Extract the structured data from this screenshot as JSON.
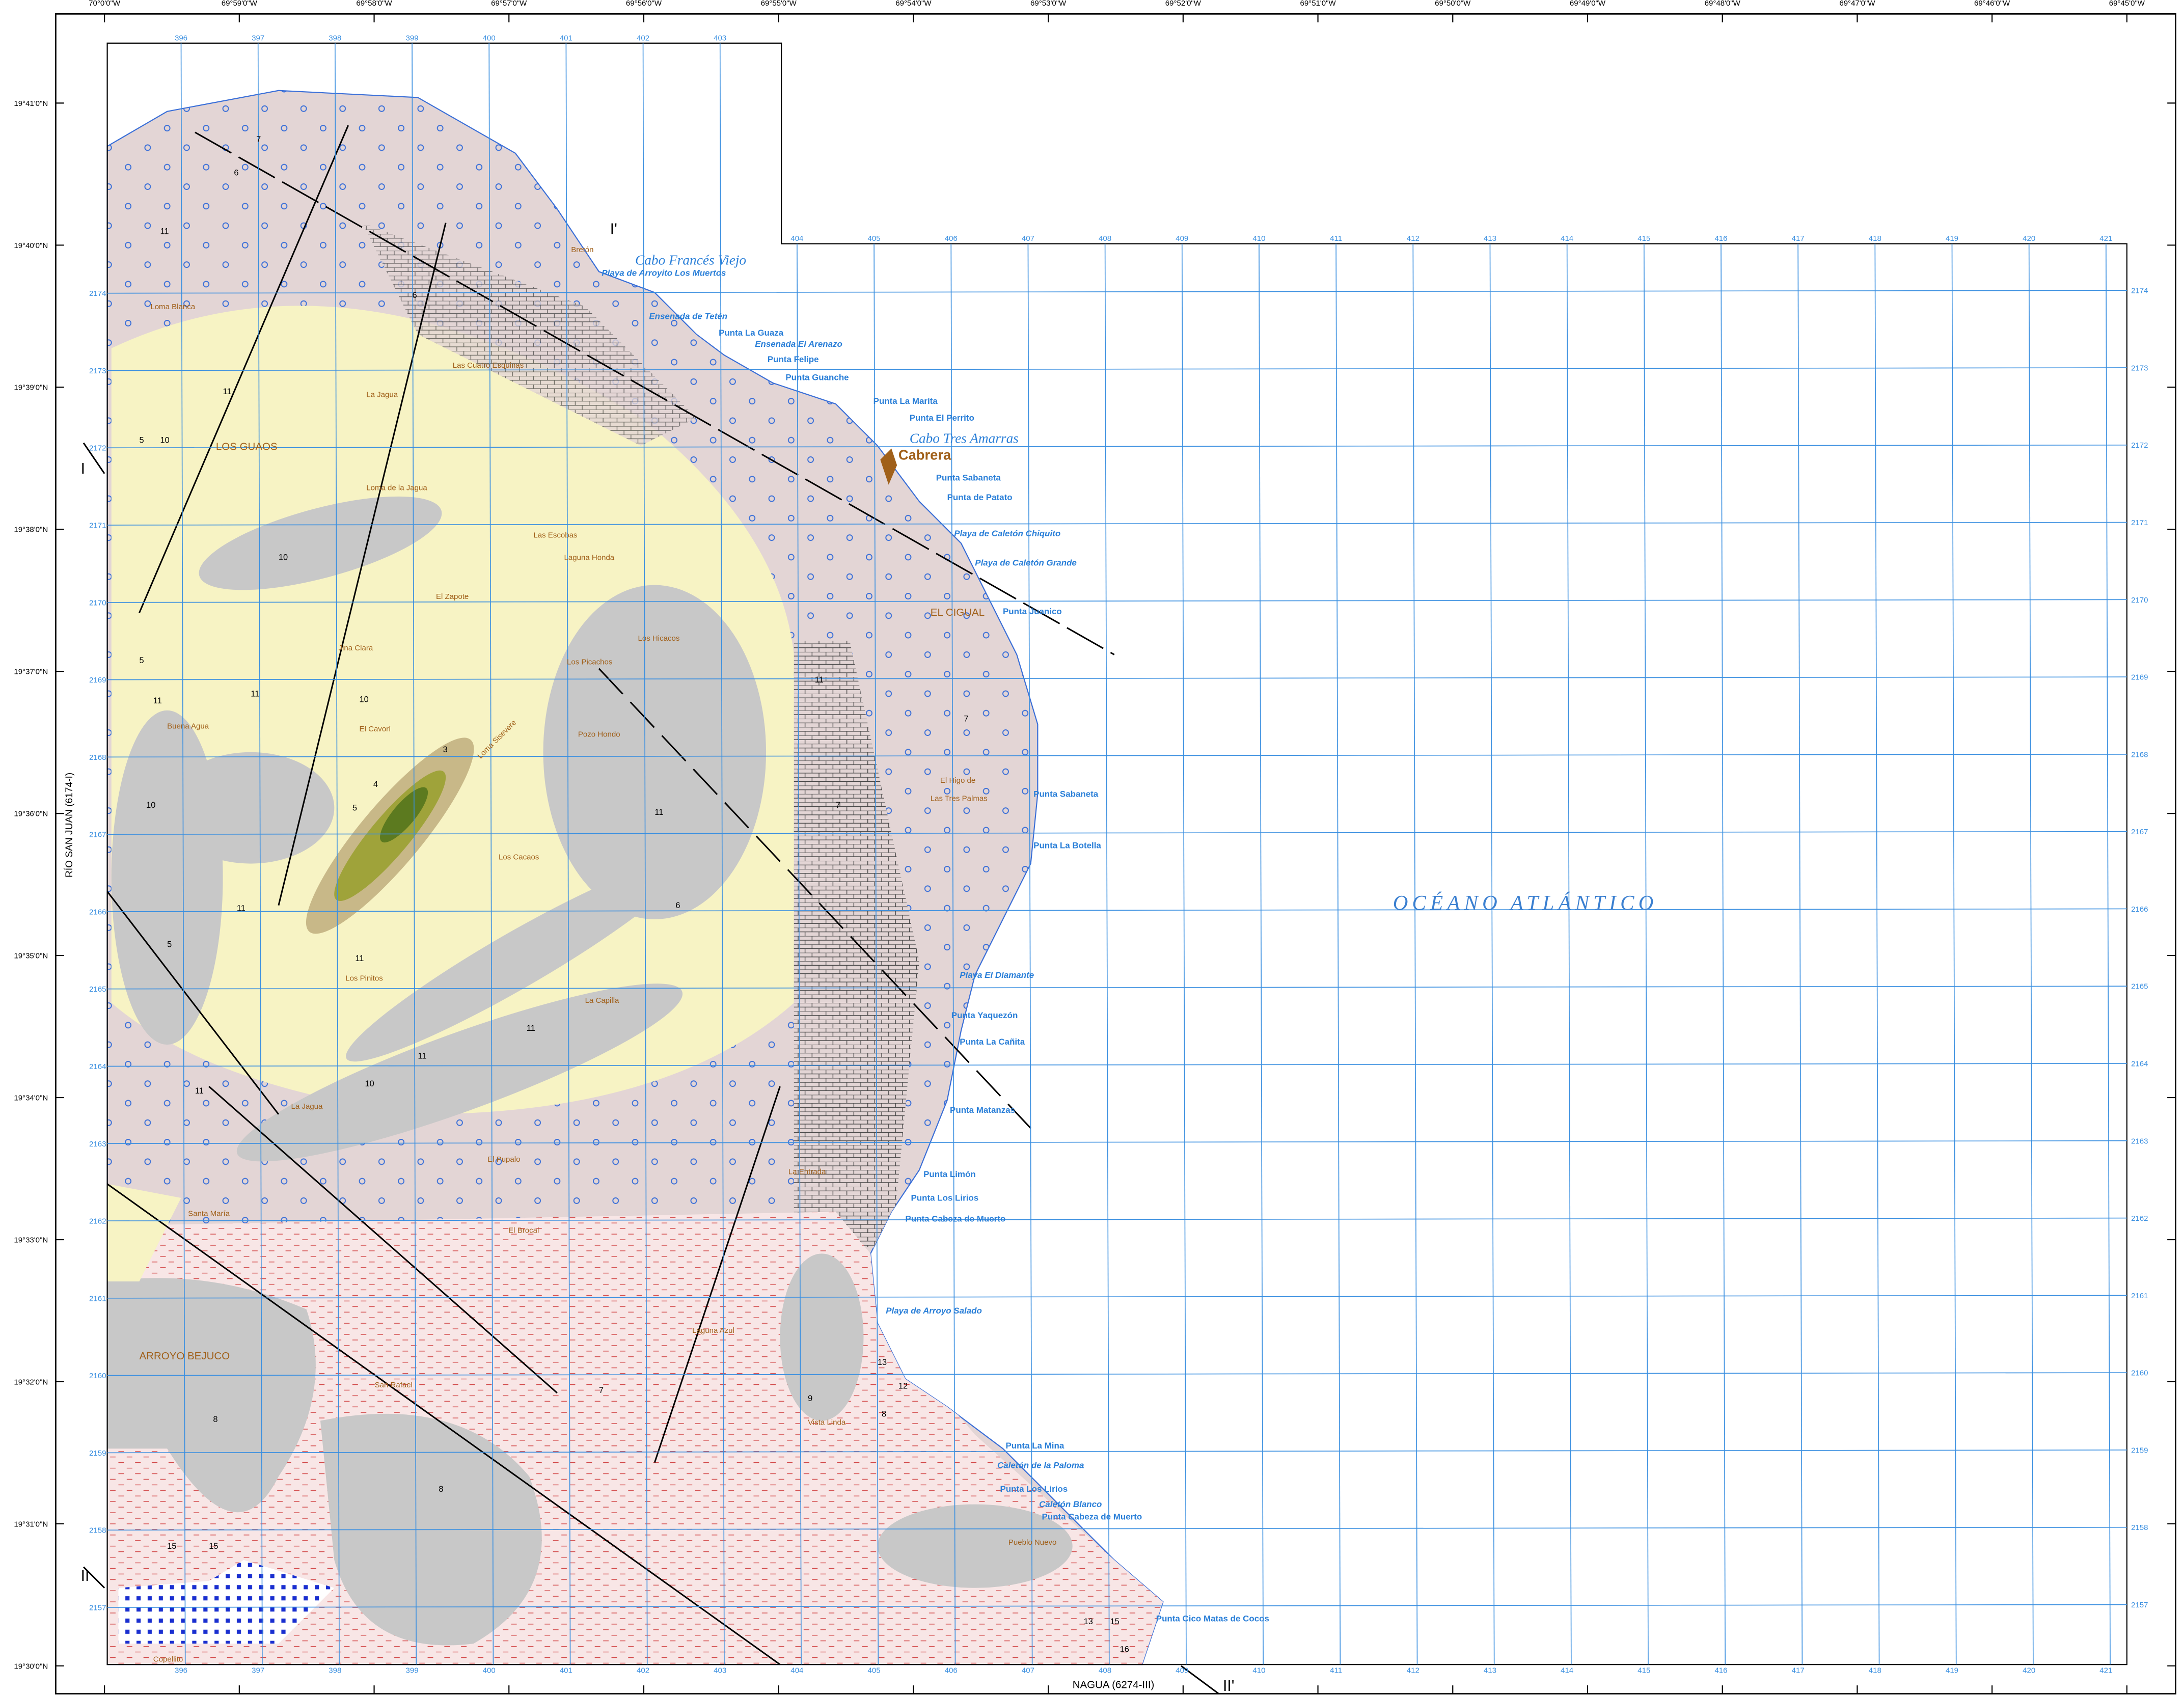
{
  "map": {
    "top_longitudes": [
      "70°0'0\"W",
      "69°59'0\"W",
      "69°58'0\"W",
      "69°57'0\"W",
      "69°56'0\"W",
      "69°55'0\"W",
      "69°54'0\"W",
      "69°53'0\"W",
      "69°52'0\"W",
      "69°51'0\"W",
      "69°50'0\"W",
      "69°49'0\"W",
      "69°48'0\"W",
      "69°47'0\"W",
      "69°46'0\"W",
      "69°45'0\"W"
    ],
    "left_latitudes": [
      "19°41'0\"N",
      "19°40'0\"N",
      "19°39'0\"N",
      "19°38'0\"N",
      "19°37'0\"N",
      "19°36'0\"N",
      "19°35'0\"N",
      "19°34'0\"N",
      "19°33'0\"N",
      "19°32'0\"N",
      "19°31'0\"N",
      "19°30'0\"N"
    ],
    "eastings": [
      "396",
      "397",
      "398",
      "399",
      "400",
      "401",
      "402",
      "403",
      "404",
      "405",
      "406",
      "407",
      "408",
      "409",
      "410",
      "411",
      "412",
      "413",
      "414",
      "415",
      "416",
      "417",
      "418",
      "419",
      "420",
      "421"
    ],
    "northings": [
      "2157",
      "2158",
      "2159",
      "2160",
      "2161",
      "2162",
      "2163",
      "2164",
      "2165",
      "2166",
      "2167",
      "2168",
      "2169",
      "2170",
      "2171",
      "2172",
      "2173",
      "2174"
    ],
    "sheet_left": "RÍO SAN JUAN (6174-I)",
    "sheet_bottom": "NAGUA (6274-III)",
    "section_marks": [
      "I",
      "I'",
      "II",
      "II'"
    ],
    "ocean_label": "OCÉANO ATLÁNTICO",
    "capes": [
      "Cabo Francés Viejo",
      "Cabo Tres Amarras"
    ],
    "town": "Cabrera",
    "coastal_names": [
      "Playa de Arroyito Los Muertos",
      "Ensenada de Tetén",
      "Punta La Guaza",
      "Ensenada El Arenazo",
      "Punta Felipe",
      "Punta Guanche",
      "Punta La Marita",
      "Punta El Perrito",
      "Punta Sabaneta",
      "Punta de Patato",
      "Playa de Caletón Chiquito",
      "Playa de Caletón Grande",
      "Punta Juanico",
      "Punta Sabaneta",
      "Punta La Botella",
      "Playa El Diamante",
      "Punta Yaquezón",
      "Punta La Cañita",
      "Punta Matanzas",
      "Punta Limón",
      "Punta Los Lirios",
      "Punta Cabeza de Muerto",
      "Playa de Arroyo Salado",
      "Punta La Mina",
      "Caletón de la Paloma",
      "Punta Los Lirios",
      "Caletón Blanco",
      "Punta Cabeza de Muerto",
      "Punta Cico Matas de Cocos"
    ],
    "place_names": [
      "Bretón",
      "Loma Blanca",
      "Las Cuatro Esquinas",
      "La Jagua",
      "LOS GUAOS",
      "Loma de la Jagua",
      "Las Escobas",
      "Laguna Honda",
      "El Zapote",
      "Jina Clara",
      "Los Picachos",
      "Los Hicacos",
      "Buena Agua",
      "El Cavorí",
      "Pozo Hondo",
      "Loma Sisevere",
      "Los Cacaos",
      "Los Pinitos",
      "La Capilla",
      "La Jagua",
      "El Pupalo",
      "El Brocal",
      "Santa María",
      "ARROYO BEJUCO",
      "San Rafael",
      "Laguna Azul",
      "Vista Linda",
      "Copellito",
      "EL CIGUAL",
      "La Entrada",
      "Pueblo Nuevo",
      "El Higo de",
      "Las Tres Palmas"
    ],
    "unit_numbers": [
      "7",
      "6",
      "11",
      "5",
      "10",
      "11",
      "10",
      "5",
      "11",
      "10",
      "5",
      "11",
      "3",
      "4",
      "5",
      "11",
      "11",
      "10",
      "7",
      "11",
      "11",
      "6",
      "7",
      "11",
      "11",
      "8",
      "8",
      "15",
      "13",
      "12",
      "9",
      "8",
      "15",
      "13",
      "15",
      "16",
      "7",
      "6",
      "11",
      "10"
    ]
  }
}
